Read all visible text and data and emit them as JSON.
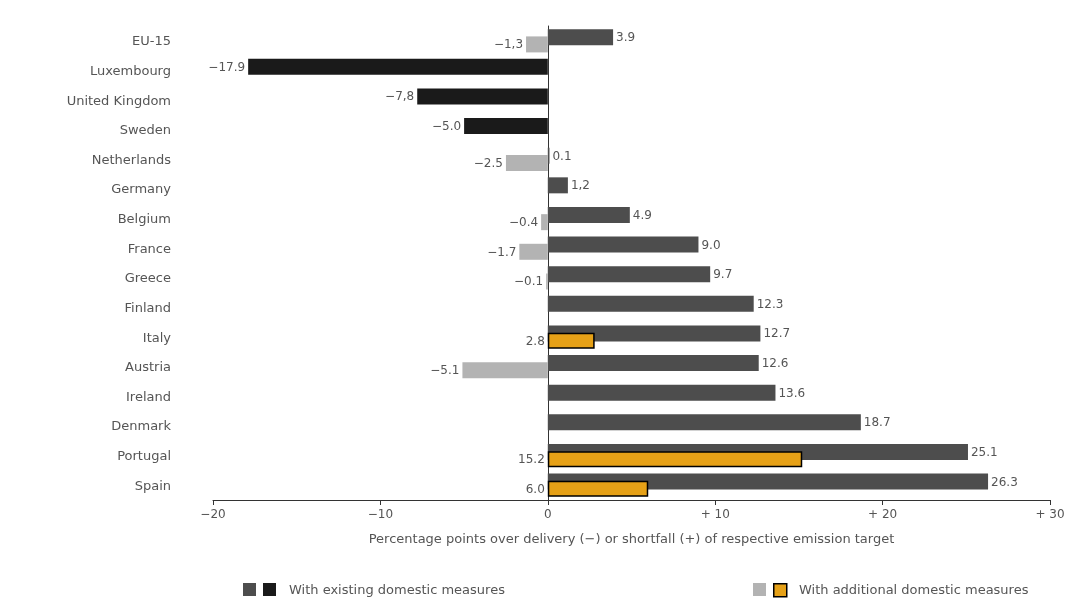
{
  "chart_data": {
    "type": "bar",
    "orientation": "horizontal",
    "categories": [
      "EU-15",
      "Luxembourg",
      "United Kingdom",
      "Sweden",
      "Netherlands",
      "Germany",
      "Belgium",
      "France",
      "Greece",
      "Finland",
      "Italy",
      "Austria",
      "Ireland",
      "Denmark",
      "Portugal",
      "Spain"
    ],
    "xlabel": "Percentage points over delivery (−) or shortfall (+) of respective emission target",
    "xlim": [
      -20,
      30
    ],
    "xticks": [
      {
        "value": -20,
        "label": "−20"
      },
      {
        "value": -10,
        "label": "−10"
      },
      {
        "value": 0,
        "label": "0"
      },
      {
        "value": 10,
        "label": "+ 10"
      },
      {
        "value": 20,
        "label": "+ 20"
      },
      {
        "value": 30,
        "label": "+ 30"
      }
    ],
    "series": [
      {
        "name": "With existing domestic measures",
        "colors": [
          "#4d4d4d",
          "#1a1a1a",
          "#1a1a1a",
          "#1a1a1a",
          "#4d4d4d",
          "#4d4d4d",
          "#4d4d4d",
          "#4d4d4d",
          "#4d4d4d",
          "#4d4d4d",
          "#4d4d4d",
          "#4d4d4d",
          "#4d4d4d",
          "#4d4d4d",
          "#4d4d4d",
          "#4d4d4d"
        ],
        "values": [
          3.9,
          -17.9,
          -7.8,
          -5.0,
          0.1,
          1.2,
          4.9,
          9.0,
          9.7,
          12.3,
          12.7,
          12.6,
          13.6,
          18.7,
          25.1,
          26.3
        ],
        "value_labels": [
          "3.9",
          "−17.9",
          "−7,8",
          "−5.0",
          "0.1",
          "1,2",
          "4.9",
          "9.0",
          "9.7",
          "12.3",
          "12.7",
          "12.6",
          "13.6",
          "18.7",
          "25.1",
          "26.3"
        ]
      },
      {
        "name": "With additional domestic measures",
        "colors": [
          "#b3b3b3",
          null,
          null,
          null,
          "#b3b3b3",
          null,
          "#b3b3b3",
          "#b3b3b3",
          "#b3b3b3",
          null,
          "#e6a117",
          "#b3b3b3",
          null,
          null,
          "#e6a117",
          "#e6a117"
        ],
        "values": [
          -1.3,
          null,
          null,
          null,
          -2.5,
          null,
          -0.4,
          -1.7,
          -0.1,
          null,
          2.8,
          -5.1,
          null,
          null,
          15.2,
          6.0
        ],
        "value_labels": [
          "−1,3",
          null,
          null,
          null,
          "−2.5",
          null,
          "−0.4",
          "−1.7",
          "−0.1",
          null,
          "2.8",
          "−5.1",
          null,
          null,
          "15.2",
          "6.0"
        ]
      }
    ],
    "legend": "bottom"
  }
}
